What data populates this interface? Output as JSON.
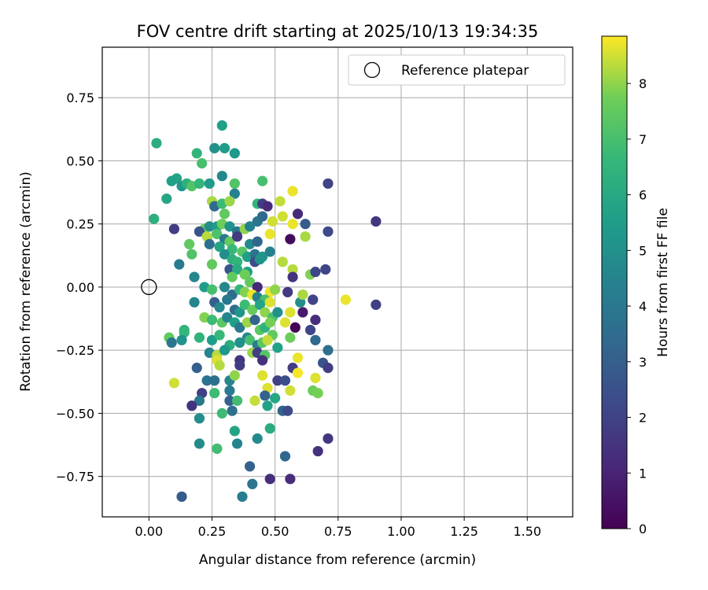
{
  "chart_data": {
    "type": "scatter",
    "title": "FOV centre drift starting at 2025/10/13 19:34:35",
    "xlabel": "Angular distance from reference (arcmin)",
    "ylabel": "Rotation from reference (arcmin)",
    "xlim": [
      -0.185,
      1.68
    ],
    "ylim": [
      -0.91,
      0.95
    ],
    "x_ticks": [
      0.0,
      0.25,
      0.5,
      0.75,
      1.0,
      1.25,
      1.5
    ],
    "x_tick_labels": [
      "0.00",
      "0.25",
      "0.50",
      "0.75",
      "1.00",
      "1.25",
      "1.50"
    ],
    "y_ticks": [
      -0.75,
      -0.5,
      -0.25,
      0.0,
      0.25,
      0.5,
      0.75
    ],
    "y_tick_labels": [
      "−0.75",
      "−0.50",
      "−0.25",
      "0.00",
      "0.25",
      "0.50",
      "0.75"
    ],
    "grid": true,
    "legend": {
      "position": "top-right",
      "entries": [
        "Reference platepar"
      ]
    },
    "reference": {
      "x": 0.0,
      "y": 0.0
    },
    "colorbar": {
      "label": "Hours from first FF file",
      "min": 0,
      "max": 8.85,
      "ticks": [
        0,
        1,
        2,
        3,
        4,
        5,
        6,
        7,
        8
      ],
      "tick_labels": [
        "0",
        "1",
        "2",
        "3",
        "4",
        "5",
        "6",
        "7",
        "8"
      ],
      "colormap": "viridis"
    },
    "points": [
      [
        0.03,
        0.57,
        6.2
      ],
      [
        0.29,
        0.64,
        5.6
      ],
      [
        0.19,
        0.53,
        6.5
      ],
      [
        0.3,
        0.55,
        5.5
      ],
      [
        0.26,
        0.55,
        5.0
      ],
      [
        0.34,
        0.53,
        5.3
      ],
      [
        0.21,
        0.49,
        7.0
      ],
      [
        0.11,
        0.43,
        5.8
      ],
      [
        0.09,
        0.42,
        5.6
      ],
      [
        0.13,
        0.4,
        5.2
      ],
      [
        0.15,
        0.41,
        6.3
      ],
      [
        0.17,
        0.4,
        7.2
      ],
      [
        0.2,
        0.41,
        6.6
      ],
      [
        0.24,
        0.41,
        5.4
      ],
      [
        0.29,
        0.44,
        4.7
      ],
      [
        0.34,
        0.41,
        7.2
      ],
      [
        0.34,
        0.37,
        4.4
      ],
      [
        0.07,
        0.35,
        5.9
      ],
      [
        0.25,
        0.34,
        8.2
      ],
      [
        0.26,
        0.32,
        3.4
      ],
      [
        0.29,
        0.33,
        6.8
      ],
      [
        0.3,
        0.29,
        7.5
      ],
      [
        0.32,
        0.34,
        8.1
      ],
      [
        0.45,
        0.42,
        7.0
      ],
      [
        0.43,
        0.33,
        6.6
      ],
      [
        0.45,
        0.33,
        1.8
      ],
      [
        0.47,
        0.32,
        1.2
      ],
      [
        0.52,
        0.34,
        8.4
      ],
      [
        0.57,
        0.38,
        8.7
      ],
      [
        0.71,
        0.41,
        2.0
      ],
      [
        0.02,
        0.27,
        6.3
      ],
      [
        0.22,
        0.23,
        7.7
      ],
      [
        0.24,
        0.24,
        4.9
      ],
      [
        0.27,
        0.24,
        5.5
      ],
      [
        0.29,
        0.25,
        7.7
      ],
      [
        0.32,
        0.24,
        5.1
      ],
      [
        0.35,
        0.22,
        4.0
      ],
      [
        0.38,
        0.23,
        8.0
      ],
      [
        0.4,
        0.24,
        4.4
      ],
      [
        0.43,
        0.26,
        3.9
      ],
      [
        0.45,
        0.28,
        3.4
      ],
      [
        0.49,
        0.26,
        8.5
      ],
      [
        0.53,
        0.28,
        8.5
      ],
      [
        0.57,
        0.25,
        8.7
      ],
      [
        0.59,
        0.29,
        1.2
      ],
      [
        0.62,
        0.25,
        2.9
      ],
      [
        0.1,
        0.23,
        1.8
      ],
      [
        0.2,
        0.22,
        2.6
      ],
      [
        0.23,
        0.2,
        8.3
      ],
      [
        0.27,
        0.21,
        7.1
      ],
      [
        0.3,
        0.19,
        4.1
      ],
      [
        0.32,
        0.18,
        7.6
      ],
      [
        0.35,
        0.2,
        1.7
      ],
      [
        0.4,
        0.17,
        4.7
      ],
      [
        0.43,
        0.18,
        3.3
      ],
      [
        0.48,
        0.21,
        8.7
      ],
      [
        0.56,
        0.19,
        0.3
      ],
      [
        0.62,
        0.2,
        8.2
      ],
      [
        0.71,
        0.22,
        2.2
      ],
      [
        0.9,
        0.26,
        1.6
      ],
      [
        0.16,
        0.17,
        7.5
      ],
      [
        0.24,
        0.17,
        3.6
      ],
      [
        0.28,
        0.16,
        5.8
      ],
      [
        0.33,
        0.15,
        6.7
      ],
      [
        0.37,
        0.14,
        7.3
      ],
      [
        0.39,
        0.12,
        5.6
      ],
      [
        0.42,
        0.13,
        3.8
      ],
      [
        0.45,
        0.12,
        5.2
      ],
      [
        0.48,
        0.14,
        4.4
      ],
      [
        0.17,
        0.13,
        7.2
      ],
      [
        0.3,
        0.13,
        4.9
      ],
      [
        0.33,
        0.11,
        6.3
      ],
      [
        0.35,
        0.1,
        6.5
      ],
      [
        0.42,
        0.1,
        2.4
      ],
      [
        0.44,
        0.11,
        5.1
      ],
      [
        0.53,
        0.1,
        8.3
      ],
      [
        0.57,
        0.07,
        8.3
      ],
      [
        0.64,
        0.05,
        7.9
      ],
      [
        0.66,
        0.06,
        2.1
      ],
      [
        0.7,
        0.07,
        2.1
      ],
      [
        0.12,
        0.09,
        4.1
      ],
      [
        0.25,
        0.09,
        7.5
      ],
      [
        0.32,
        0.07,
        2.6
      ],
      [
        0.35,
        0.07,
        6.1
      ],
      [
        0.39,
        0.06,
        5.6
      ],
      [
        0.33,
        0.04,
        7.5
      ],
      [
        0.38,
        0.05,
        7.7
      ],
      [
        0.4,
        0.02,
        7.5
      ],
      [
        0.43,
        0.0,
        1.1
      ],
      [
        0.48,
        -0.02,
        8.7
      ],
      [
        0.5,
        -0.01,
        8.0
      ],
      [
        0.57,
        0.04,
        1.5
      ],
      [
        0.18,
        0.04,
        4.6
      ],
      [
        0.22,
        0.0,
        5.5
      ],
      [
        0.25,
        -0.01,
        7.0
      ],
      [
        0.3,
        0.0,
        4.7
      ],
      [
        0.33,
        -0.03,
        3.5
      ],
      [
        0.36,
        -0.01,
        6.5
      ],
      [
        0.38,
        -0.02,
        7.9
      ],
      [
        0.41,
        -0.03,
        8.7
      ],
      [
        0.43,
        -0.04,
        4.3
      ],
      [
        0.46,
        -0.05,
        7.0
      ],
      [
        0.48,
        -0.06,
        8.6
      ],
      [
        0.55,
        -0.02,
        1.7
      ],
      [
        0.6,
        -0.06,
        4.9
      ],
      [
        0.61,
        -0.03,
        8.2
      ],
      [
        0.65,
        -0.05,
        2.0
      ],
      [
        0.78,
        -0.05,
        8.7
      ],
      [
        0.9,
        -0.07,
        1.9
      ],
      [
        0.18,
        -0.06,
        4.6
      ],
      [
        0.26,
        -0.06,
        3.0
      ],
      [
        0.28,
        -0.08,
        4.7
      ],
      [
        0.31,
        -0.05,
        4.0
      ],
      [
        0.34,
        -0.09,
        3.5
      ],
      [
        0.36,
        -0.1,
        5.2
      ],
      [
        0.38,
        -0.07,
        6.8
      ],
      [
        0.41,
        -0.09,
        7.6
      ],
      [
        0.44,
        -0.07,
        5.8
      ],
      [
        0.46,
        -0.1,
        8.0
      ],
      [
        0.49,
        -0.12,
        7.0
      ],
      [
        0.51,
        -0.1,
        5.0
      ],
      [
        0.56,
        -0.1,
        8.6
      ],
      [
        0.61,
        -0.1,
        0.7
      ],
      [
        0.66,
        -0.13,
        1.3
      ],
      [
        0.22,
        -0.12,
        7.9
      ],
      [
        0.25,
        -0.13,
        6.8
      ],
      [
        0.29,
        -0.14,
        7.4
      ],
      [
        0.31,
        -0.12,
        4.6
      ],
      [
        0.34,
        -0.14,
        5.6
      ],
      [
        0.36,
        -0.16,
        4.0
      ],
      [
        0.39,
        -0.14,
        8.1
      ],
      [
        0.42,
        -0.13,
        3.2
      ],
      [
        0.44,
        -0.17,
        7.4
      ],
      [
        0.46,
        -0.16,
        6.4
      ],
      [
        0.48,
        -0.14,
        7.8
      ],
      [
        0.49,
        -0.19,
        7.5
      ],
      [
        0.54,
        -0.14,
        8.6
      ],
      [
        0.58,
        -0.16,
        0.1
      ],
      [
        0.64,
        -0.17,
        2.1
      ],
      [
        0.14,
        -0.17,
        6.4
      ],
      [
        0.14,
        -0.18,
        6.6
      ],
      [
        0.08,
        -0.2,
        7.5
      ],
      [
        0.09,
        -0.22,
        3.9
      ],
      [
        0.13,
        -0.21,
        5.1
      ],
      [
        0.2,
        -0.2,
        6.4
      ],
      [
        0.25,
        -0.21,
        5.5
      ],
      [
        0.28,
        -0.19,
        6.7
      ],
      [
        0.32,
        -0.23,
        6.2
      ],
      [
        0.36,
        -0.22,
        5.0
      ],
      [
        0.39,
        -0.2,
        4.7
      ],
      [
        0.4,
        -0.21,
        7.0
      ],
      [
        0.43,
        -0.23,
        4.3
      ],
      [
        0.45,
        -0.22,
        7.4
      ],
      [
        0.47,
        -0.21,
        8.4
      ],
      [
        0.51,
        -0.24,
        5.7
      ],
      [
        0.56,
        -0.2,
        7.7
      ],
      [
        0.66,
        -0.21,
        3.4
      ],
      [
        0.71,
        -0.25,
        3.6
      ],
      [
        0.24,
        -0.26,
        4.5
      ],
      [
        0.27,
        -0.27,
        8.3
      ],
      [
        0.3,
        -0.25,
        5.3
      ],
      [
        0.36,
        -0.29,
        1.5
      ],
      [
        0.41,
        -0.26,
        8.1
      ],
      [
        0.43,
        -0.26,
        1.9
      ],
      [
        0.46,
        -0.27,
        7.3
      ],
      [
        0.19,
        -0.32,
        3.0
      ],
      [
        0.27,
        -0.29,
        8.6
      ],
      [
        0.28,
        -0.31,
        8.3
      ],
      [
        0.36,
        -0.31,
        1.8
      ],
      [
        0.45,
        -0.29,
        1.4
      ],
      [
        0.57,
        -0.32,
        1.8
      ],
      [
        0.59,
        -0.28,
        8.7
      ],
      [
        0.69,
        -0.3,
        2.6
      ],
      [
        0.71,
        -0.32,
        1.8
      ],
      [
        0.1,
        -0.38,
        8.5
      ],
      [
        0.23,
        -0.37,
        3.8
      ],
      [
        0.26,
        -0.37,
        3.6
      ],
      [
        0.32,
        -0.37,
        4.5
      ],
      [
        0.34,
        -0.35,
        8.0
      ],
      [
        0.45,
        -0.35,
        8.6
      ],
      [
        0.51,
        -0.37,
        1.9
      ],
      [
        0.54,
        -0.37,
        2.4
      ],
      [
        0.59,
        -0.34,
        8.8
      ],
      [
        0.66,
        -0.36,
        8.6
      ],
      [
        0.21,
        -0.42,
        1.9
      ],
      [
        0.26,
        -0.42,
        6.8
      ],
      [
        0.32,
        -0.41,
        4.1
      ],
      [
        0.47,
        -0.4,
        8.6
      ],
      [
        0.56,
        -0.41,
        8.5
      ],
      [
        0.65,
        -0.41,
        7.7
      ],
      [
        0.67,
        -0.42,
        7.8
      ],
      [
        0.2,
        -0.45,
        4.0
      ],
      [
        0.32,
        -0.45,
        3.1
      ],
      [
        0.35,
        -0.45,
        6.9
      ],
      [
        0.42,
        -0.45,
        8.4
      ],
      [
        0.46,
        -0.43,
        3.1
      ],
      [
        0.5,
        -0.44,
        5.9
      ],
      [
        0.17,
        -0.47,
        1.5
      ],
      [
        0.29,
        -0.5,
        6.8
      ],
      [
        0.33,
        -0.49,
        3.6
      ],
      [
        0.47,
        -0.47,
        5.7
      ],
      [
        0.53,
        -0.49,
        3.2
      ],
      [
        0.55,
        -0.49,
        2.3
      ],
      [
        0.2,
        -0.52,
        4.9
      ],
      [
        0.34,
        -0.57,
        5.8
      ],
      [
        0.43,
        -0.6,
        4.7
      ],
      [
        0.48,
        -0.56,
        6.1
      ],
      [
        0.35,
        -0.62,
        4.5
      ],
      [
        0.71,
        -0.6,
        1.6
      ],
      [
        0.2,
        -0.62,
        4.8
      ],
      [
        0.27,
        -0.64,
        6.9
      ],
      [
        0.54,
        -0.67,
        3.3
      ],
      [
        0.67,
        -0.65,
        1.4
      ],
      [
        0.4,
        -0.71,
        3.1
      ],
      [
        0.48,
        -0.76,
        1.3
      ],
      [
        0.56,
        -0.76,
        1.3
      ],
      [
        0.41,
        -0.78,
        3.9
      ],
      [
        0.13,
        -0.83,
        2.9
      ],
      [
        0.37,
        -0.83,
        4.2
      ]
    ]
  }
}
